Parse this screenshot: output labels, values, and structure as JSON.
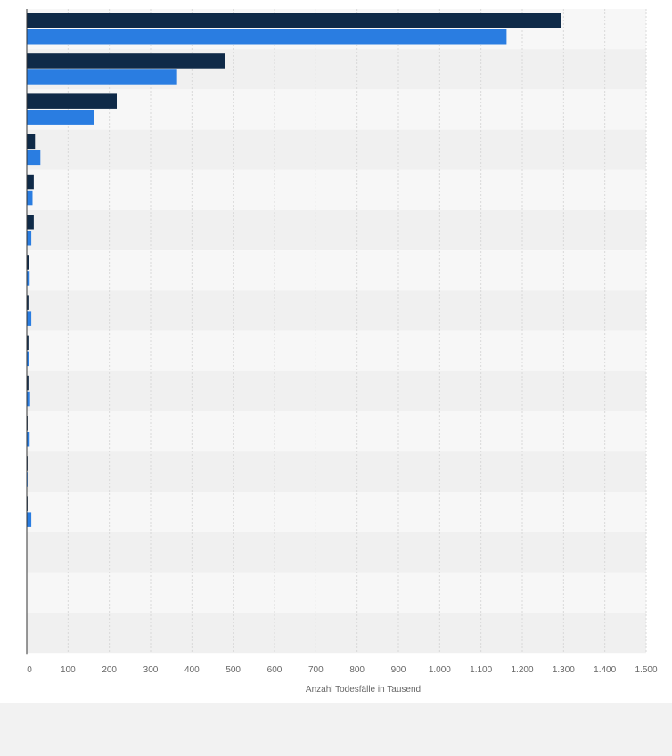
{
  "chart_data": {
    "type": "bar",
    "orientation": "horizontal",
    "categories": [
      "",
      "",
      "",
      "",
      "",
      "",
      "",
      "",
      "",
      "",
      "",
      "",
      "",
      "",
      "",
      ""
    ],
    "series": [
      {
        "color": "#0f2a48",
        "values": [
          1293,
          481,
          218,
          20,
          17,
          17,
          6,
          4,
          4,
          4,
          2,
          2,
          2,
          0,
          0,
          0
        ]
      },
      {
        "color": "#2a7de1",
        "values": [
          1162,
          364,
          162,
          33,
          14,
          11,
          7,
          11,
          6,
          8,
          7,
          2,
          11,
          0,
          0,
          0
        ]
      }
    ],
    "xlim": [
      0,
      1500
    ],
    "x_ticks": [
      "0",
      "100",
      "200",
      "300",
      "400",
      "500",
      "600",
      "700",
      "800",
      "900",
      "1.000",
      "1.100",
      "1.200",
      "1.300",
      "1.400",
      "1.500"
    ],
    "xlabel": "Anzahl Todesfälle in Tausend",
    "grid": true,
    "row_colors": [
      "#f7f7f7",
      "#f0f0f0"
    ],
    "grid_color": "#d9d9d9"
  }
}
